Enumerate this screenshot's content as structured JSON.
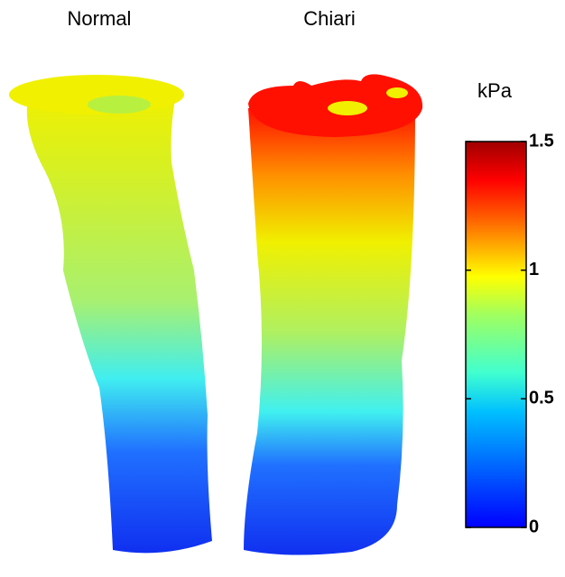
{
  "panels": [
    {
      "label": "Normal"
    },
    {
      "label": "Chiari"
    }
  ],
  "colorbar": {
    "label": "kPa",
    "lim": [
      0,
      1.5
    ],
    "ticks": [
      0,
      0.5,
      1,
      1.5
    ],
    "colormap": "jet"
  }
}
